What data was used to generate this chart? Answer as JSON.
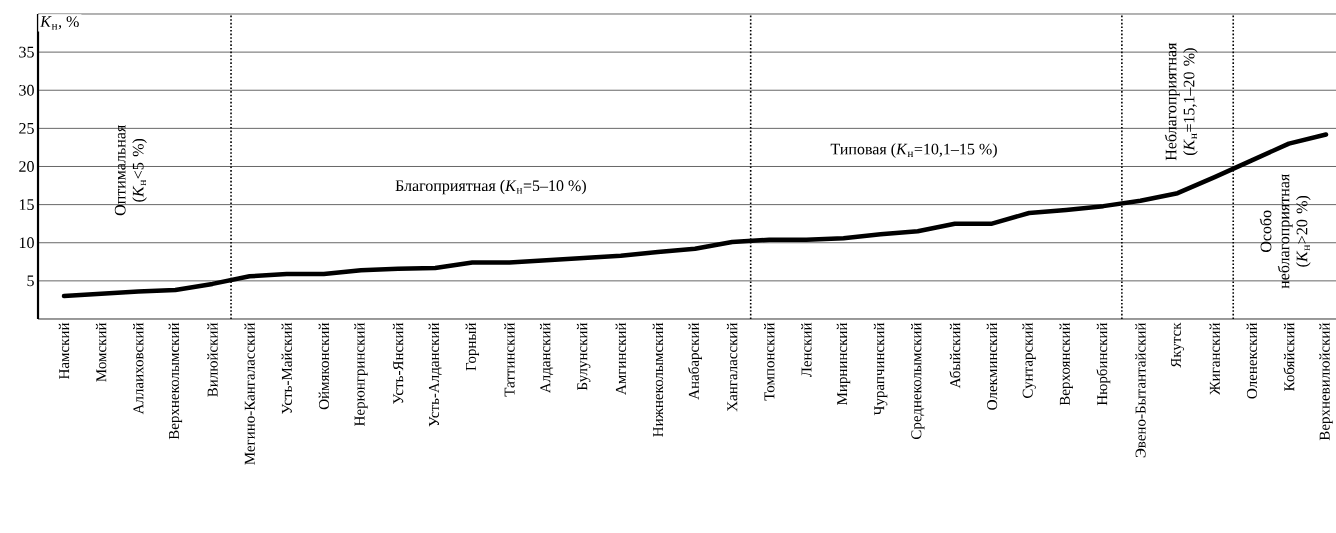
{
  "chart_data": {
    "type": "line",
    "ylabel": "*K*$_{н}$, %",
    "categories": [
      "Намский",
      "Момский",
      "Аллаиховский",
      "Верхнеколымский",
      "Вилюйский",
      "Мегино-Кангаласский",
      "Усть-Майский",
      "Оймяконский",
      "Нерюнгринский",
      "Усть-Янский",
      "Усть-Алданский",
      "Горный",
      "Таттинский",
      "Алданский",
      "Булунский",
      "Амгинский",
      "Нижнеколымский",
      "Анабарский",
      "Хангаласский",
      "Томпонский",
      "Ленский",
      "Мирнинский",
      "Чурапчинский",
      "Среднеколымский",
      "Абыйский",
      "Олекминский",
      "Сунтарский",
      "Верхоянский",
      "Нюрбинский",
      "Эвено-Бытантайский",
      "Якутск",
      "Жиганский",
      "Оленекский",
      "Кобяйский",
      "Верхневилюйский"
    ],
    "values": [
      3.0,
      3.3,
      3.6,
      3.8,
      4.6,
      5.6,
      5.9,
      5.9,
      6.4,
      6.6,
      6.7,
      7.4,
      7.4,
      7.7,
      8.0,
      8.3,
      8.8,
      9.2,
      10.1,
      10.4,
      10.4,
      10.6,
      11.1,
      11.5,
      12.5,
      12.5,
      13.9,
      14.3,
      14.8,
      15.5,
      16.5,
      18.6,
      20.8,
      23.0,
      24.2
    ],
    "color": "#000000",
    "line_style": "solid",
    "ylim": [
      0,
      40
    ],
    "yticks": [
      5,
      10,
      15,
      20,
      25,
      30,
      35,
      {
        "value": 40,
        "label": null
      }
    ],
    "grid": "y",
    "annotations": [
      "Оптимальная (*K*$_{н}$<5 %)",
      "Благоприятная (*K*$_{н}$=5–10 %)",
      "Типовая (*K*$_{н}$=10,1–15 %)",
      "Неблагоприятная (*K*$_{н}$=15,1–20 %)",
      "Особо неблагоприятная (*K*$_{н}$>20 %)"
    ]
  }
}
